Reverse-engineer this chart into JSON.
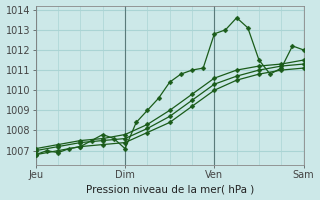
{
  "xlabel": "Pression niveau de la mer( hPa )",
  "bg_color": "#cce8e8",
  "grid_color": "#aad4d4",
  "line_color": "#1a5c1a",
  "xlim": [
    0,
    72
  ],
  "ylim": [
    1006.3,
    1014.2
  ],
  "yticks": [
    1007,
    1008,
    1009,
    1010,
    1011,
    1012,
    1013,
    1014
  ],
  "xtick_labels": [
    "Jeu",
    "Dim",
    "Ven",
    "Sam"
  ],
  "xtick_positions": [
    0,
    24,
    48,
    72
  ],
  "vline_positions": [
    0,
    24,
    48,
    72
  ],
  "series": [
    {
      "x": [
        0,
        3,
        6,
        9,
        12,
        15,
        18,
        21,
        24,
        27,
        30,
        33,
        36,
        39,
        42,
        45,
        48,
        51,
        54,
        57,
        60,
        63,
        66,
        69,
        72
      ],
      "y": [
        1006.8,
        1007.0,
        1006.9,
        1007.1,
        1007.2,
        1007.5,
        1007.8,
        1007.6,
        1007.1,
        1008.4,
        1009.0,
        1009.6,
        1010.4,
        1010.8,
        1011.0,
        1011.1,
        1012.8,
        1013.0,
        1013.6,
        1013.1,
        1011.5,
        1010.8,
        1011.1,
        1012.2,
        1012.0
      ]
    },
    {
      "x": [
        0,
        6,
        12,
        18,
        24,
        30,
        36,
        42,
        48,
        54,
        60,
        66,
        72
      ],
      "y": [
        1006.8,
        1007.0,
        1007.2,
        1007.3,
        1007.4,
        1007.9,
        1008.4,
        1009.2,
        1010.0,
        1010.5,
        1010.8,
        1011.0,
        1011.1
      ]
    },
    {
      "x": [
        0,
        6,
        12,
        18,
        24,
        30,
        36,
        42,
        48,
        54,
        60,
        66,
        72
      ],
      "y": [
        1007.0,
        1007.2,
        1007.4,
        1007.5,
        1007.6,
        1008.1,
        1008.7,
        1009.5,
        1010.3,
        1010.7,
        1011.0,
        1011.2,
        1011.3
      ]
    },
    {
      "x": [
        0,
        6,
        12,
        18,
        24,
        30,
        36,
        42,
        48,
        54,
        60,
        66,
        72
      ],
      "y": [
        1007.1,
        1007.3,
        1007.5,
        1007.6,
        1007.8,
        1008.3,
        1009.0,
        1009.8,
        1010.6,
        1011.0,
        1011.2,
        1011.3,
        1011.5
      ]
    }
  ]
}
